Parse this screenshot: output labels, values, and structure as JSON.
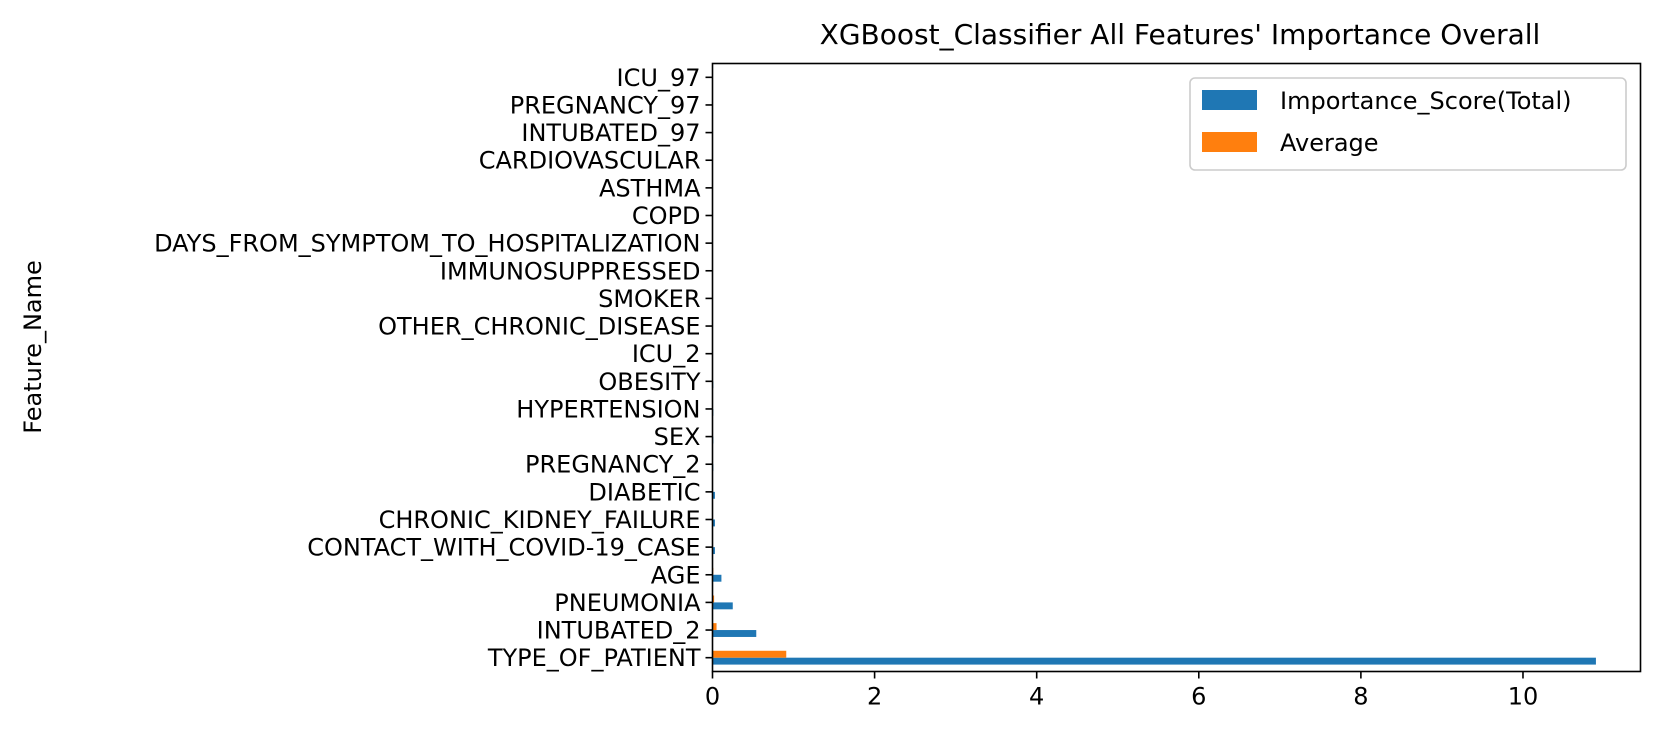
{
  "chart_data": {
    "type": "bar",
    "orientation": "horizontal",
    "title": "XGBoost_Classifier All Features' Importance Overall",
    "xlabel": "",
    "ylabel": "Feature_Name",
    "xlim": [
      0,
      11.45
    ],
    "xticks": [
      0,
      2,
      4,
      6,
      8,
      10
    ],
    "grid": false,
    "legend_position": "upper right",
    "categories": [
      "TYPE_OF_PATIENT",
      "INTUBATED_2",
      "PNEUMONIA",
      "AGE",
      "CONTACT_WITH_COVID-19_CASE",
      "CHRONIC_KIDNEY_FAILURE",
      "DIABETIC",
      "PREGNANCY_2",
      "SEX",
      "HYPERTENSION",
      "OBESITY",
      "ICU_2",
      "OTHER_CHRONIC_DISEASE",
      "SMOKER",
      "IMMUNOSUPPRESSED",
      "DAYS_FROM_SYMPTOM_TO_HOSPITALIZATION",
      "COPD",
      "ASTHMA",
      "CARDIOVASCULAR",
      "INTUBATED_97",
      "PREGNANCY_97",
      "ICU_97"
    ],
    "series": [
      {
        "name": "Importance_Score(Total)",
        "color": "#1f77b4",
        "values": [
          10.9,
          0.54,
          0.25,
          0.11,
          0.03,
          0.03,
          0.03,
          0.01,
          0.01,
          0.01,
          0.01,
          0.005,
          0.005,
          0.005,
          0.003,
          0.003,
          0.002,
          0.002,
          0.002,
          0.001,
          0.001,
          0.001
        ]
      },
      {
        "name": "Average",
        "color": "#ff7f0e",
        "values": [
          0.91,
          0.05,
          0.02,
          0.01,
          0.003,
          0.003,
          0.003,
          0.001,
          0.001,
          0.001,
          0.001,
          0.0005,
          0.0005,
          0.0005,
          0.0003,
          0.0003,
          0.0002,
          0.0002,
          0.0002,
          0.0001,
          0.0001,
          0.0001
        ]
      }
    ]
  }
}
